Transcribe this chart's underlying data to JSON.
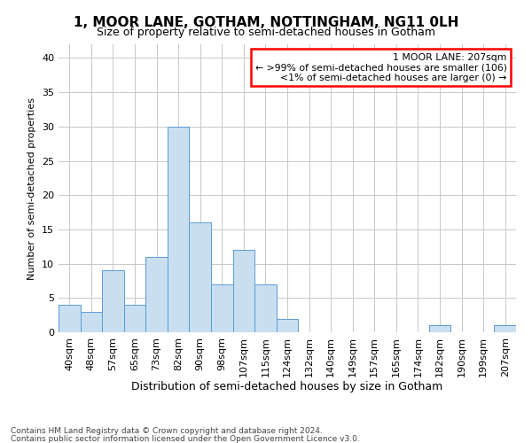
{
  "title": "1, MOOR LANE, GOTHAM, NOTTINGHAM, NG11 0LH",
  "subtitle": "Size of property relative to semi-detached houses in Gotham",
  "xlabel": "Distribution of semi-detached houses by size in Gotham",
  "ylabel": "Number of semi-detached properties",
  "categories": [
    "40sqm",
    "48sqm",
    "57sqm",
    "65sqm",
    "73sqm",
    "82sqm",
    "90sqm",
    "98sqm",
    "107sqm",
    "115sqm",
    "124sqm",
    "132sqm",
    "140sqm",
    "149sqm",
    "157sqm",
    "165sqm",
    "174sqm",
    "182sqm",
    "190sqm",
    "199sqm",
    "207sqm"
  ],
  "values": [
    4,
    3,
    9,
    4,
    11,
    30,
    16,
    7,
    12,
    7,
    2,
    0,
    0,
    0,
    0,
    0,
    0,
    1,
    0,
    0,
    1
  ],
  "bar_color": "#c9dff0",
  "bar_edge_color": "#5b9bd5",
  "box_text_line1": "1 MOOR LANE: 207sqm",
  "box_text_line2": "← >99% of semi-detached houses are smaller (106)",
  "box_text_line3": "<1% of semi-detached houses are larger (0) →",
  "box_color": "white",
  "box_edge_color": "red",
  "ylim": [
    0,
    42
  ],
  "yticks": [
    0,
    5,
    10,
    15,
    20,
    25,
    30,
    35,
    40
  ],
  "footer_line1": "Contains HM Land Registry data © Crown copyright and database right 2024.",
  "footer_line2": "Contains public sector information licensed under the Open Government Licence v3.0.",
  "background_color": "white",
  "grid_color": "#c8c8c8",
  "title_fontsize": 11,
  "subtitle_fontsize": 9,
  "xlabel_fontsize": 9,
  "ylabel_fontsize": 8,
  "tick_fontsize": 8,
  "footer_fontsize": 6.5
}
